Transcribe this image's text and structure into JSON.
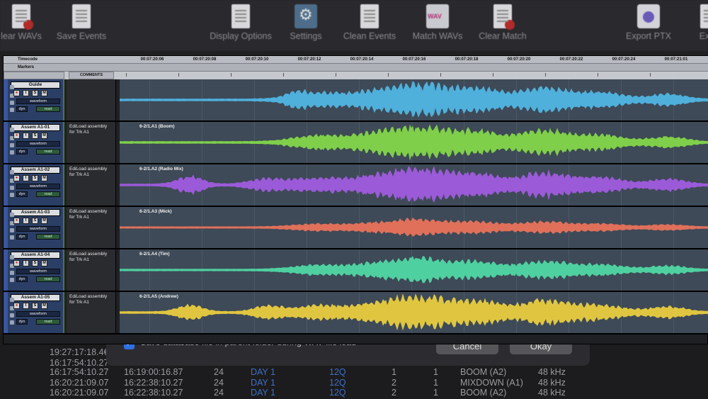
{
  "toolbar": {
    "buttons": [
      {
        "label": "lear WAVs",
        "icon": "clear-wavs-icon"
      },
      {
        "label": "Save Events",
        "icon": "save-events-icon"
      },
      {
        "label": "Display Options",
        "icon": "display-options-icon"
      },
      {
        "label": "Settings",
        "icon": "gear-icon"
      },
      {
        "label": "Clean Events",
        "icon": "clean-events-icon"
      },
      {
        "label": "Match WAVs",
        "icon": "wav-icon"
      },
      {
        "label": "Clear Match",
        "icon": "clear-match-icon"
      },
      {
        "label": "Export PTX",
        "icon": "export-ptx-icon"
      },
      {
        "label": "Expo",
        "icon": "export-icon"
      }
    ]
  },
  "dialog": {
    "checkbox_label": "Save database file in parent folder during WAV file load",
    "checked": true,
    "cancel_label": "Cancel",
    "okay_label": "Okay"
  },
  "db_table": {
    "rows": [
      {
        "c1": "19:27:17:18.4€",
        "c2": "",
        "c3": "",
        "c4": "",
        "c5": "",
        "c6": "",
        "c7": "",
        "c8": "",
        "c9": ""
      },
      {
        "c1": "16:17:54:10.27",
        "c2": "",
        "c3": "",
        "c4": "",
        "c5": "",
        "c6": "",
        "c7": "",
        "c8": "",
        "c9": ""
      },
      {
        "c1": "16:17:54:10.27",
        "c2": "16:19:00:16.87",
        "c3": "24",
        "c4": "DAY 1",
        "c5": "12Q",
        "c6": "1",
        "c7": "1",
        "c8": "BOOM (A2)",
        "c9": "48 kHz"
      },
      {
        "c1": "16:20:21:09.07",
        "c2": "16:22:38:10.27",
        "c3": "24",
        "c4": "DAY 1",
        "c5": "12Q",
        "c6": "2",
        "c7": "1",
        "c8": "MIXDOWN (A1)",
        "c9": "48 kHz"
      },
      {
        "c1": "16:20:21:09.07",
        "c2": "16:22:38:10.27",
        "c3": "24",
        "c4": "DAY 1",
        "c5": "12Q",
        "c6": "2",
        "c7": "1",
        "c8": "BOOM (A2)",
        "c9": "48 kHz"
      }
    ]
  },
  "ruler": {
    "timecode_label": "Timecode",
    "markers_label": "Markers",
    "comments_header": "COMMENTS",
    "ticks": [
      "00:07:20:06",
      "00:07:20:08",
      "00:07:20:10",
      "00:07:20:12",
      "00:07:20:14",
      "00:07:20:16",
      "00:07:20:18",
      "00:07:20:20",
      "00:07:20:22",
      "00:07:20:24",
      "00:07:21:01"
    ]
  },
  "track_controls": {
    "rec": "●",
    "input": "I",
    "solo": "S",
    "mute": "M",
    "view": "waveform",
    "dyn": "dyn",
    "auto": "read"
  },
  "tracks": [
    {
      "name": "Guide",
      "comment": "",
      "clip": "",
      "color": "#4fb0dc",
      "seed": 1
    },
    {
      "name": "Assem A1-01",
      "comment": "EdiLoad assembly for Trk A1",
      "clip": "6-2/1.A1 (Boom)",
      "color": "#7fcf4a",
      "seed": 2
    },
    {
      "name": "Assem A1-02",
      "comment": "EdiLoad assembly for Trk A1",
      "clip": "6-2/1.A2 (Radio Mix)",
      "color": "#9b5ad8",
      "seed": 3
    },
    {
      "name": "Assem A1-03",
      "comment": "EdiLoad assembly for Trk A1",
      "clip": "6-2/1.A3 (Mick)",
      "color": "#e0705a",
      "seed": 4
    },
    {
      "name": "Assem A1-04",
      "comment": "EdiLoad assembly for Trk A1",
      "clip": "6-2/1.A4 (Tim)",
      "color": "#4fd0a0",
      "seed": 5
    },
    {
      "name": "Assem A1-05",
      "comment": "EdiLoad assembly for Trk A1",
      "clip": "6-2/1.A5 (Andrew)",
      "color": "#e0c640",
      "seed": 6
    }
  ]
}
